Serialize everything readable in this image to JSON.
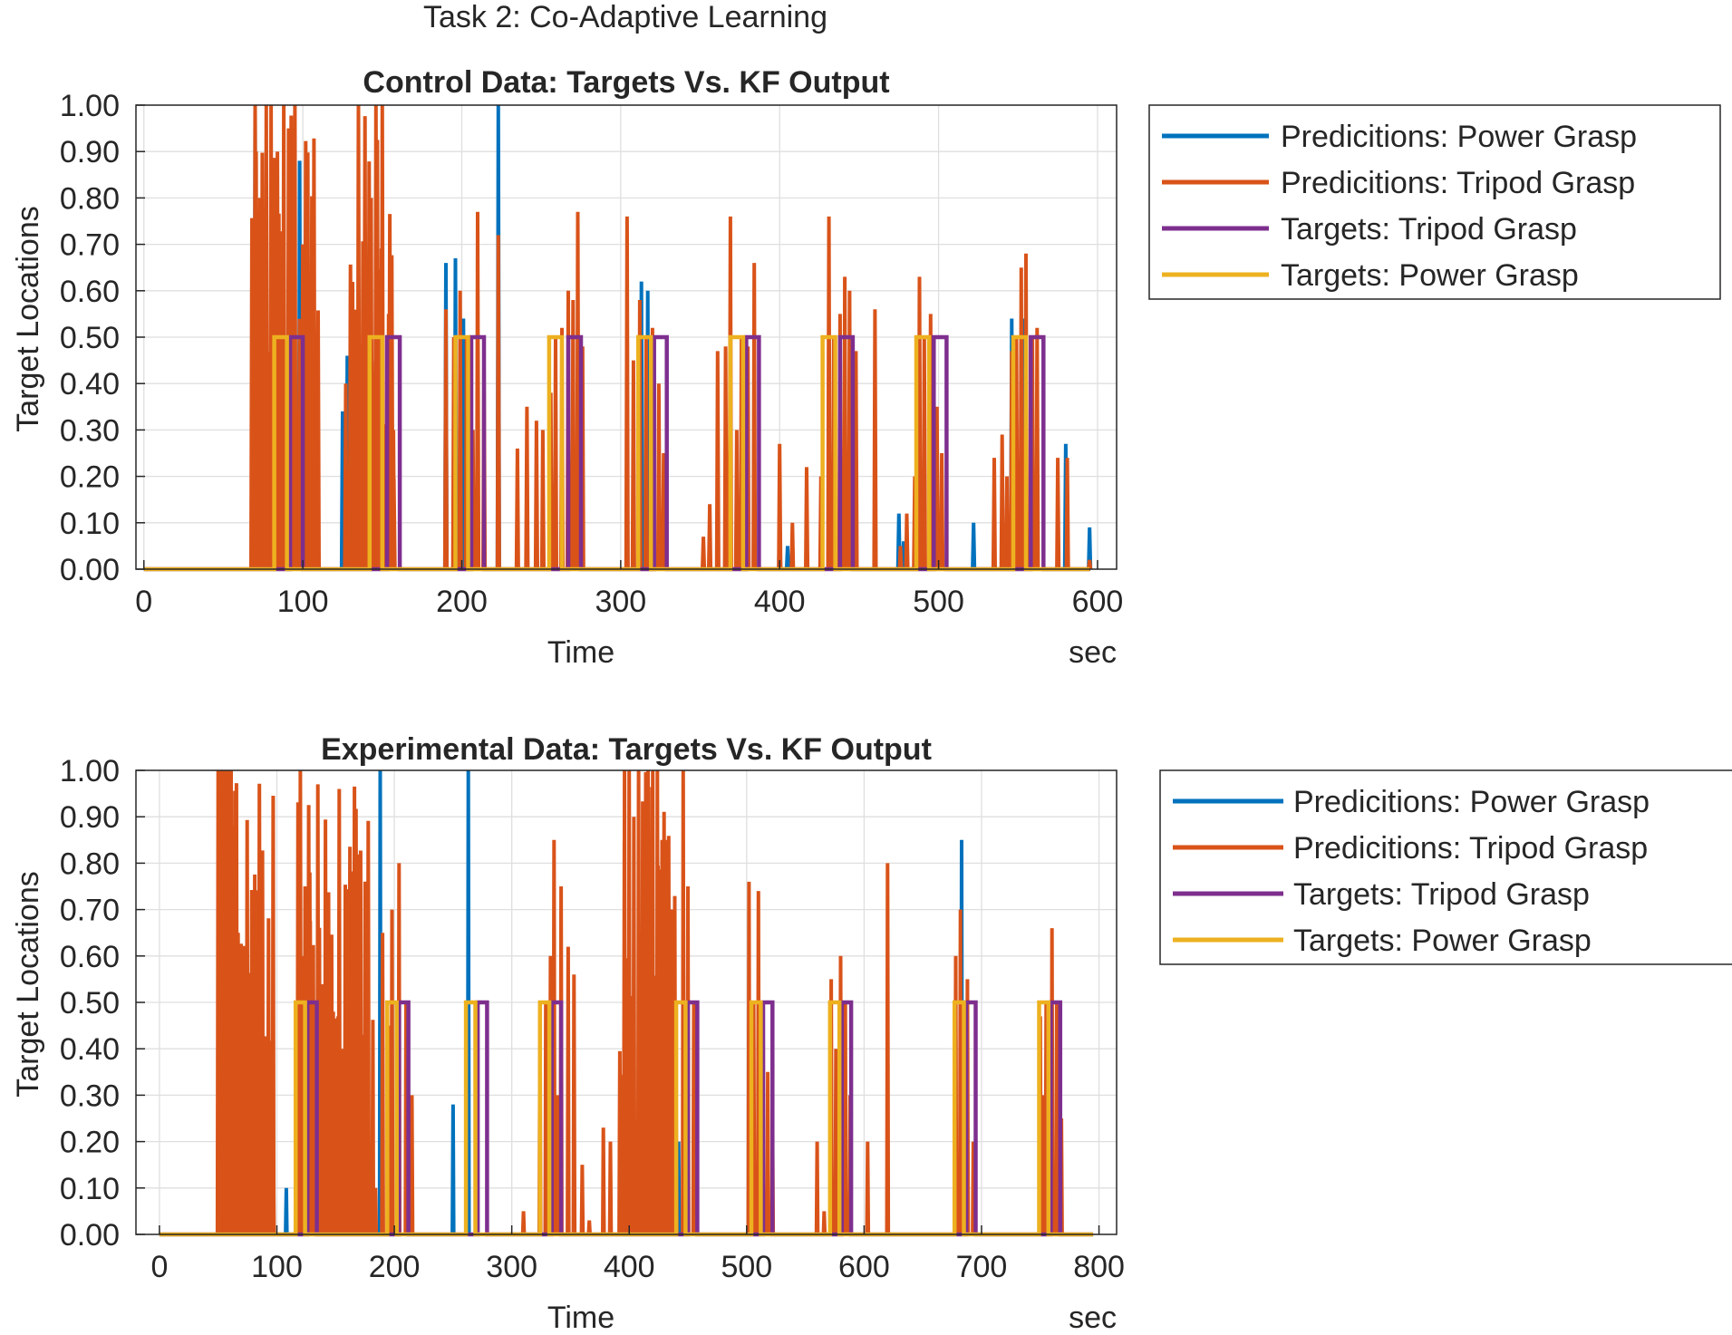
{
  "figure": {
    "title": "Task 2: Co-Adaptive Learning"
  },
  "colors": {
    "power_pred": "#0072BD",
    "tripod_pred": "#D95319",
    "tripod_target": "#7E2F8E",
    "power_target": "#EDB120"
  },
  "chart_data": [
    {
      "type": "line",
      "title": "Control Data: Targets Vs. KF Output",
      "xlabel": "Time",
      "xunit": "sec",
      "ylabel": "Target Locations",
      "xlim": [
        -5,
        612
      ],
      "ylim": [
        0,
        1
      ],
      "xticks": [
        0,
        100,
        200,
        300,
        400,
        500,
        600
      ],
      "yticks": [
        "0.00",
        "0.10",
        "0.20",
        "0.30",
        "0.40",
        "0.50",
        "0.60",
        "0.70",
        "0.80",
        "0.90",
        "1.00"
      ],
      "grid": true,
      "legend": [
        "Predicitions: Power Grasp",
        "Predicitions: Tripod Grasp",
        "Targets: Tripod Grasp",
        "Targets: Power Grasp"
      ],
      "legend_position": "outside-right-top",
      "trials_power_target_start": [
        82,
        142,
        196,
        255,
        311,
        369,
        427,
        486,
        547
      ],
      "trials_tripod_target_start": [
        92,
        153,
        206,
        267,
        321,
        379,
        438,
        497,
        558
      ],
      "power_pred_peaks": [
        [
          70,
          1.0
        ],
        [
          98,
          0.88
        ],
        [
          105,
          0.15
        ],
        [
          125,
          0.34
        ],
        [
          128,
          0.46
        ],
        [
          190,
          0.66
        ],
        [
          196,
          0.67
        ],
        [
          201,
          0.54
        ],
        [
          223,
          1.0
        ],
        [
          258,
          0.06
        ],
        [
          313,
          0.62
        ],
        [
          317,
          0.6
        ],
        [
          400,
          0.1
        ],
        [
          405,
          0.05
        ],
        [
          475,
          0.12
        ],
        [
          478,
          0.06
        ],
        [
          522,
          0.1
        ],
        [
          546,
          0.54
        ],
        [
          554,
          0.54
        ],
        [
          580,
          0.27
        ],
        [
          595,
          0.09
        ]
      ],
      "tripod_pred_peaks": [
        [
          68,
          0.05
        ],
        [
          70,
          1.0
        ],
        [
          73,
          0.8
        ],
        [
          77,
          1.0
        ],
        [
          80,
          1.0
        ],
        [
          84,
          0.9
        ],
        [
          88,
          1.0
        ],
        [
          91,
          0.95
        ],
        [
          95,
          1.0
        ],
        [
          100,
          0.7
        ],
        [
          103,
          0.2
        ],
        [
          106,
          0.2
        ],
        [
          109,
          0.1
        ],
        [
          127,
          0.4
        ],
        [
          135,
          1.0
        ],
        [
          138,
          0.2
        ],
        [
          143,
          0.8
        ],
        [
          146,
          1.0
        ],
        [
          150,
          1.0
        ],
        [
          154,
          0.55
        ],
        [
          157,
          0.3
        ],
        [
          190,
          0.56
        ],
        [
          195,
          0.5
        ],
        [
          199,
          0.6
        ],
        [
          203,
          0.5
        ],
        [
          207,
          0.3
        ],
        [
          210,
          0.77
        ],
        [
          214,
          0.45
        ],
        [
          223,
          0.72
        ],
        [
          235,
          0.26
        ],
        [
          241,
          0.35
        ],
        [
          247,
          0.32
        ],
        [
          251,
          0.3
        ],
        [
          256,
          0.38
        ],
        [
          259,
          0.5
        ],
        [
          263,
          0.52
        ],
        [
          267,
          0.6
        ],
        [
          270,
          0.58
        ],
        [
          273,
          0.77
        ],
        [
          276,
          0.48
        ],
        [
          304,
          0.76
        ],
        [
          308,
          0.45
        ],
        [
          312,
          0.58
        ],
        [
          316,
          0.5
        ],
        [
          320,
          0.52
        ],
        [
          324,
          0.4
        ],
        [
          327,
          0.25
        ],
        [
          352,
          0.07
        ],
        [
          356,
          0.14
        ],
        [
          361,
          0.47
        ],
        [
          366,
          0.48
        ],
        [
          369,
          0.76
        ],
        [
          373,
          0.3
        ],
        [
          376,
          0.5
        ],
        [
          380,
          0.48
        ],
        [
          384,
          0.66
        ],
        [
          400,
          0.27
        ],
        [
          408,
          0.1
        ],
        [
          417,
          0.22
        ],
        [
          426,
          0.2
        ],
        [
          431,
          0.76
        ],
        [
          434,
          0.5
        ],
        [
          438,
          0.55
        ],
        [
          441,
          0.63
        ],
        [
          444,
          0.6
        ],
        [
          448,
          0.47
        ],
        [
          460,
          0.56
        ],
        [
          476,
          0.05
        ],
        [
          480,
          0.12
        ],
        [
          485,
          0.2
        ],
        [
          488,
          0.63
        ],
        [
          491,
          0.5
        ],
        [
          495,
          0.55
        ],
        [
          499,
          0.35
        ],
        [
          502,
          0.25
        ],
        [
          535,
          0.24
        ],
        [
          540,
          0.29
        ],
        [
          543,
          0.2
        ],
        [
          546,
          0.47
        ],
        [
          549,
          0.5
        ],
        [
          552,
          0.65
        ],
        [
          555,
          0.68
        ],
        [
          559,
          0.5
        ],
        [
          562,
          0.52
        ],
        [
          575,
          0.24
        ],
        [
          581,
          0.24
        ],
        [
          595,
          0.02
        ]
      ],
      "tripod_pred_dense_ranges": [
        [
          68,
          110
        ],
        [
          130,
          158
        ]
      ]
    },
    {
      "type": "line",
      "title": "Experimental Data: Targets Vs. KF Output",
      "xlabel": "Time",
      "xunit": "sec",
      "ylabel": "Target Locations",
      "xlim": [
        -20,
        815
      ],
      "ylim": [
        0,
        1
      ],
      "xticks": [
        0,
        100,
        200,
        300,
        400,
        500,
        600,
        700,
        800
      ],
      "yticks": [
        "0.00",
        "0.10",
        "0.20",
        "0.30",
        "0.40",
        "0.50",
        "0.60",
        "0.70",
        "0.80",
        "0.90",
        "1.00"
      ],
      "grid": true,
      "legend": [
        "Predicitions: Power Grasp",
        "Predicitions: Tripod Grasp",
        "Targets: Tripod Grasp",
        "Targets: Power Grasp"
      ],
      "legend_position": "outside-right-top",
      "trials_power_target_start": [
        116,
        194,
        261,
        324,
        440,
        504,
        571,
        677,
        749
      ],
      "trials_tripod_target_start": [
        126,
        204,
        271,
        334,
        450,
        514,
        581,
        687,
        759
      ],
      "power_pred_peaks": [
        [
          55,
          0.25
        ],
        [
          58,
          0.05
        ],
        [
          108,
          0.1
        ],
        [
          118,
          0.1
        ],
        [
          140,
          0.2
        ],
        [
          160,
          0.3
        ],
        [
          188,
          1.0
        ],
        [
          250,
          0.28
        ],
        [
          263,
          1.0
        ],
        [
          430,
          0.3
        ],
        [
          442,
          0.2
        ],
        [
          575,
          0.05
        ],
        [
          683,
          0.85
        ]
      ],
      "tripod_pred_peaks": [
        [
          50,
          1.0
        ],
        [
          52,
          1.0
        ],
        [
          55,
          1.0
        ],
        [
          58,
          1.0
        ],
        [
          61,
          1.0
        ],
        [
          64,
          0.88
        ],
        [
          67,
          0.65
        ],
        [
          70,
          0.55
        ],
        [
          73,
          0.25
        ],
        [
          76,
          0.28
        ],
        [
          80,
          0.27
        ],
        [
          84,
          0.2
        ],
        [
          88,
          0.26
        ],
        [
          92,
          0.35
        ],
        [
          95,
          0.35
        ],
        [
          97,
          0.2
        ],
        [
          120,
          1.0
        ],
        [
          124,
          0.75
        ],
        [
          128,
          0.78
        ],
        [
          132,
          0.47
        ],
        [
          136,
          0.5
        ],
        [
          140,
          0.45
        ],
        [
          144,
          0.35
        ],
        [
          148,
          0.48
        ],
        [
          152,
          0.47
        ],
        [
          156,
          0.4
        ],
        [
          160,
          0.47
        ],
        [
          164,
          0.42
        ],
        [
          168,
          0.46
        ],
        [
          172,
          0.43
        ],
        [
          176,
          0.45
        ],
        [
          180,
          0.15
        ],
        [
          184,
          0.1
        ],
        [
          190,
          0.65
        ],
        [
          196,
          0.45
        ],
        [
          198,
          0.7
        ],
        [
          204,
          0.8
        ],
        [
          210,
          0.5
        ],
        [
          215,
          0.3
        ],
        [
          310,
          0.05
        ],
        [
          324,
          0.5
        ],
        [
          329,
          0.5
        ],
        [
          333,
          0.6
        ],
        [
          336,
          0.85
        ],
        [
          339,
          0.3
        ],
        [
          342,
          0.75
        ],
        [
          348,
          0.62
        ],
        [
          353,
          0.56
        ],
        [
          360,
          0.15
        ],
        [
          366,
          0.03
        ],
        [
          378,
          0.23
        ],
        [
          384,
          0.2
        ],
        [
          392,
          0.2
        ],
        [
          396,
          1.0
        ],
        [
          400,
          1.0
        ],
        [
          404,
          0.9
        ],
        [
          408,
          1.0
        ],
        [
          412,
          0.7
        ],
        [
          416,
          1.0
        ],
        [
          420,
          1.0
        ],
        [
          424,
          1.0
        ],
        [
          428,
          0.85
        ],
        [
          432,
          0.85
        ],
        [
          436,
          0.7
        ],
        [
          440,
          0.25
        ],
        [
          446,
          1.0
        ],
        [
          450,
          0.75
        ],
        [
          455,
          0.5
        ],
        [
          502,
          0.76
        ],
        [
          506,
          0.5
        ],
        [
          510,
          0.74
        ],
        [
          514,
          0.45
        ],
        [
          518,
          0.35
        ],
        [
          522,
          0.25
        ],
        [
          560,
          0.2
        ],
        [
          566,
          0.05
        ],
        [
          572,
          0.55
        ],
        [
          576,
          0.4
        ],
        [
          580,
          0.6
        ],
        [
          584,
          0.5
        ],
        [
          588,
          0.3
        ],
        [
          603,
          0.2
        ],
        [
          620,
          0.8
        ],
        [
          678,
          0.6
        ],
        [
          682,
          0.7
        ],
        [
          688,
          0.55
        ],
        [
          693,
          0.2
        ],
        [
          750,
          0.47
        ],
        [
          755,
          0.5
        ],
        [
          760,
          0.66
        ],
        [
          764,
          0.5
        ],
        [
          768,
          0.25
        ],
        [
          752,
          0.3
        ]
      ],
      "tripod_pred_dense_ranges": [
        [
          50,
          98
        ],
        [
          118,
          182
        ],
        [
          392,
          440
        ]
      ]
    }
  ]
}
